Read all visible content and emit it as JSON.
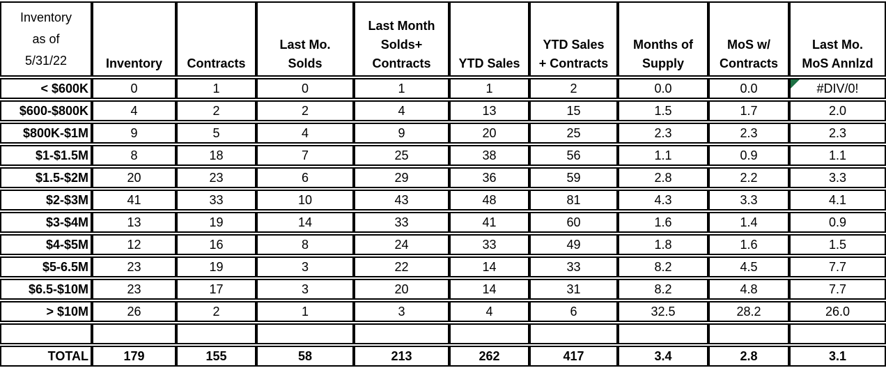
{
  "chart_data": {
    "type": "table",
    "title": "Inventory as of 5/31/22",
    "corner_header": "Inventory\nas of\n5/31/22",
    "columns": [
      "Inventory",
      "Contracts",
      "Last Mo.\nSolds",
      "Last Month\nSolds+\nContracts",
      "YTD Sales",
      "YTD Sales\n+ Contracts",
      "Months of\nSupply",
      "MoS w/\nContracts",
      "Last Mo.\nMoS Annlzd"
    ],
    "rows": [
      {
        "label": "< $600K",
        "values": [
          "0",
          "1",
          "0",
          "1",
          "1",
          "2",
          "0.0",
          "0.0",
          "#DIV/0!"
        ]
      },
      {
        "label": "$600-$800K",
        "values": [
          "4",
          "2",
          "2",
          "4",
          "13",
          "15",
          "1.5",
          "1.7",
          "2.0"
        ]
      },
      {
        "label": "$800K-$1M",
        "values": [
          "9",
          "5",
          "4",
          "9",
          "20",
          "25",
          "2.3",
          "2.3",
          "2.3"
        ]
      },
      {
        "label": "$1-$1.5M",
        "values": [
          "8",
          "18",
          "7",
          "25",
          "38",
          "56",
          "1.1",
          "0.9",
          "1.1"
        ]
      },
      {
        "label": "$1.5-$2M",
        "values": [
          "20",
          "23",
          "6",
          "29",
          "36",
          "59",
          "2.8",
          "2.2",
          "3.3"
        ]
      },
      {
        "label": "$2-$3M",
        "values": [
          "41",
          "33",
          "10",
          "43",
          "48",
          "81",
          "4.3",
          "3.3",
          "4.1"
        ]
      },
      {
        "label": "$3-$4M",
        "values": [
          "13",
          "19",
          "14",
          "33",
          "41",
          "60",
          "1.6",
          "1.4",
          "0.9"
        ]
      },
      {
        "label": "$4-$5M",
        "values": [
          "12",
          "16",
          "8",
          "24",
          "33",
          "49",
          "1.8",
          "1.6",
          "1.5"
        ]
      },
      {
        "label": "$5-6.5M",
        "values": [
          "23",
          "19",
          "3",
          "22",
          "14",
          "33",
          "8.2",
          "4.5",
          "7.7"
        ]
      },
      {
        "label": "$6.5-$10M",
        "values": [
          "23",
          "17",
          "3",
          "20",
          "14",
          "31",
          "8.2",
          "4.8",
          "7.7"
        ]
      },
      {
        "label": "> $10M",
        "values": [
          "26",
          "2",
          "1",
          "3",
          "4",
          "6",
          "32.5",
          "28.2",
          "26.0"
        ]
      }
    ],
    "spacer_row": true,
    "total_row": {
      "label": "TOTAL",
      "values": [
        "179",
        "155",
        "58",
        "213",
        "262",
        "417",
        "3.4",
        "2.8",
        "3.1"
      ]
    },
    "error_cell": {
      "row_label": "< $600K",
      "column": "Last Mo. MoS Annlzd",
      "value": "#DIV/0!",
      "marker": "error-triangle"
    },
    "colors": {
      "background": "#ffffff",
      "border": "#000000",
      "text": "#000000",
      "error_marker_green": "#1e7145"
    },
    "layout_hints": {
      "column_count": 10,
      "row_count_data": 11,
      "has_spacer_row": true,
      "grid": "on"
    }
  }
}
